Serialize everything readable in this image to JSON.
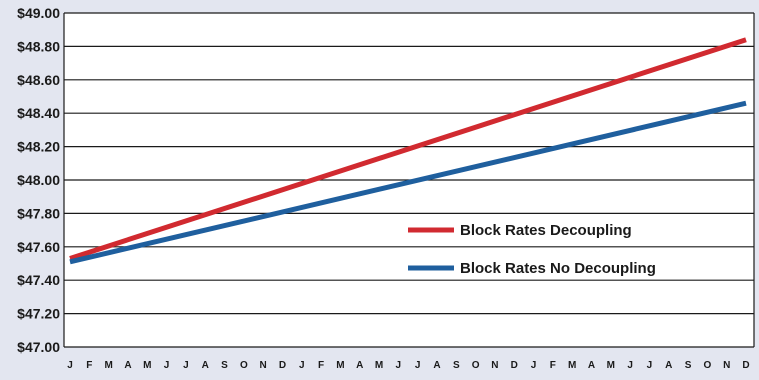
{
  "chart_data": {
    "type": "line",
    "title": "",
    "xlabel": "",
    "ylabel": "",
    "x": [
      "J",
      "F",
      "M",
      "A",
      "M",
      "J",
      "J",
      "A",
      "S",
      "O",
      "N",
      "D",
      "J",
      "F",
      "M",
      "A",
      "M",
      "J",
      "J",
      "A",
      "S",
      "O",
      "N",
      "D",
      "J",
      "F",
      "M",
      "A",
      "M",
      "J",
      "J",
      "A",
      "S",
      "O",
      "N",
      "D"
    ],
    "ylim": [
      47.0,
      49.0
    ],
    "yticks": [
      "$47.00",
      "$47.20",
      "$47.40",
      "$47.60",
      "$47.80",
      "$48.00",
      "$48.20",
      "$48.40",
      "$48.60",
      "$48.80",
      "$49.00"
    ],
    "grid": true,
    "legend": "center-right",
    "series": [
      {
        "name": "Block Rates Decoupling",
        "color": "#d12a30",
        "start": 47.53,
        "end": 48.84
      },
      {
        "name": "Block Rates No Decoupling",
        "color": "#1f5f9e",
        "start": 47.51,
        "end": 48.46
      }
    ]
  }
}
